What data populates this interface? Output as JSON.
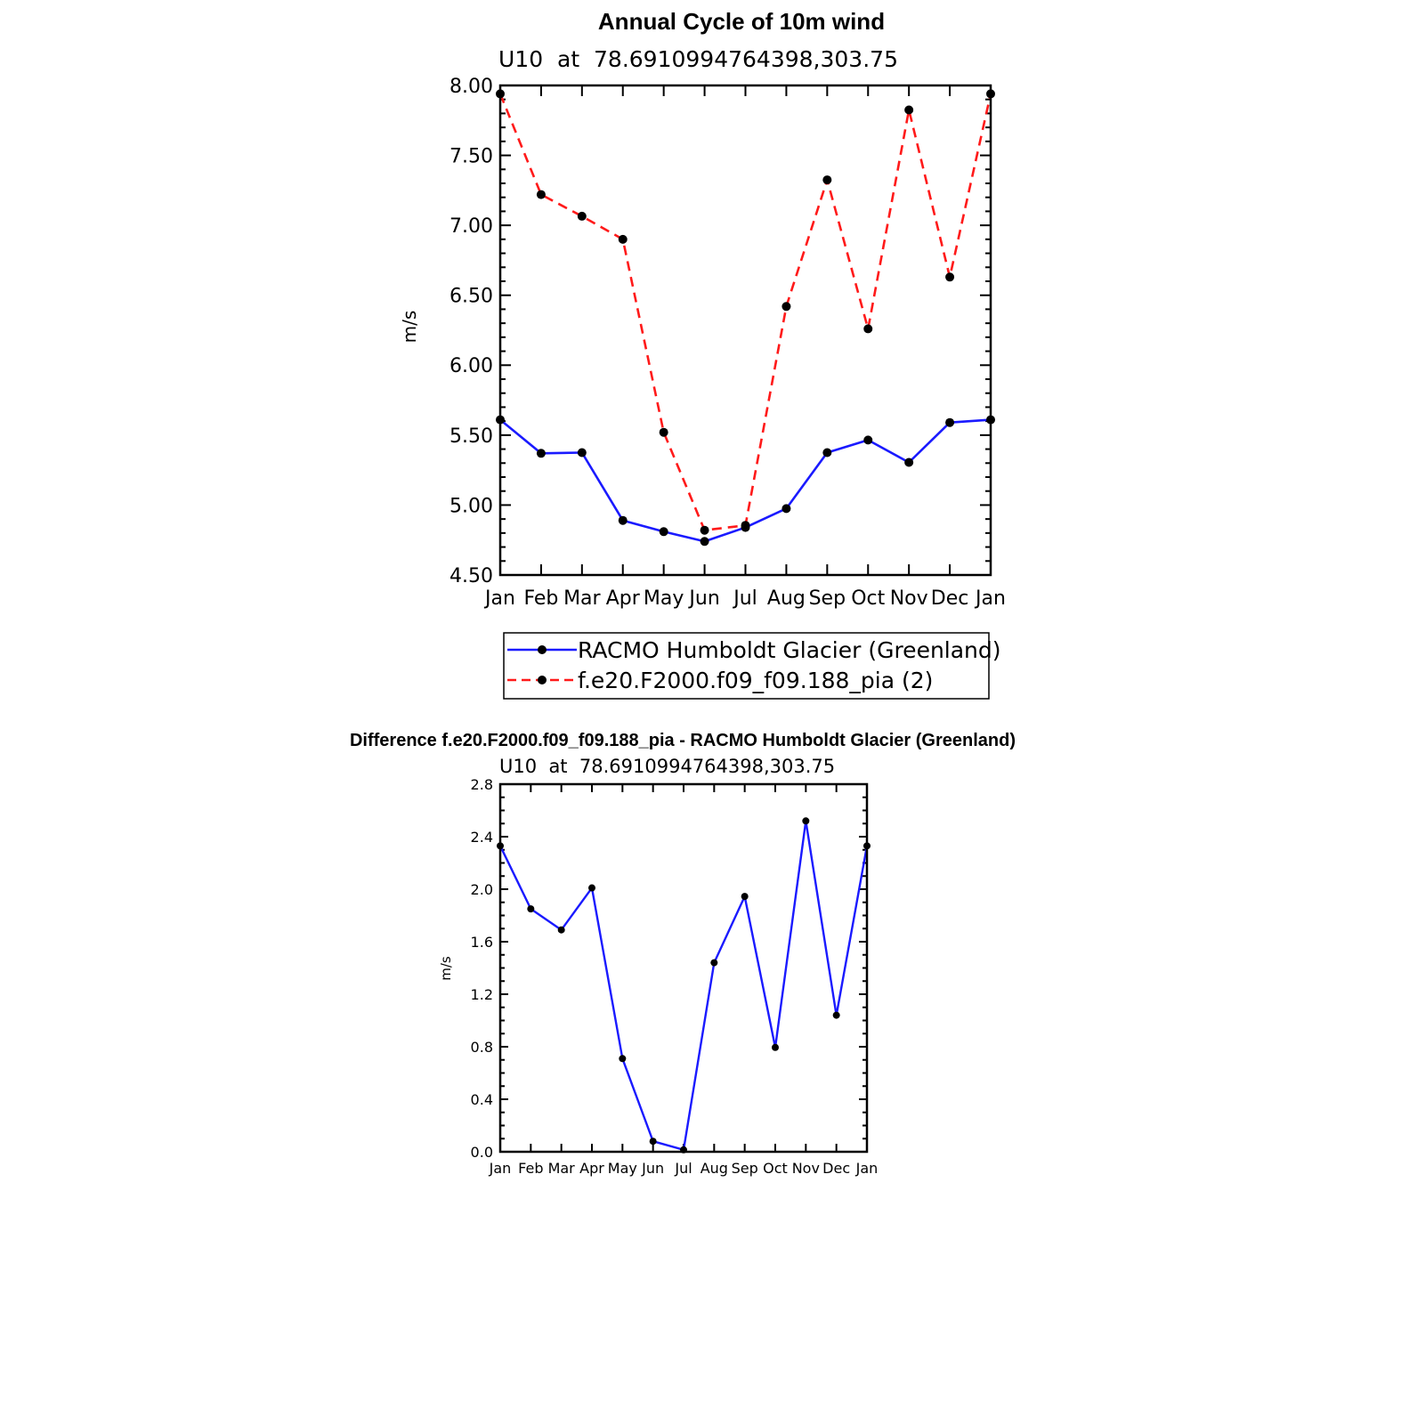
{
  "chart_data": [
    {
      "type": "line",
      "title": "Annual Cycle of 10m wind",
      "subtitle": "U10  at  78.6910994764398,303.75",
      "ylabel": "m/s",
      "xlabel": "",
      "ylim": [
        4.5,
        8.0
      ],
      "yticks": [
        "4.50",
        "5.00",
        "5.50",
        "6.00",
        "6.50",
        "7.00",
        "7.50",
        "8.00"
      ],
      "categories": [
        "Jan",
        "Feb",
        "Mar",
        "Apr",
        "May",
        "Jun",
        "Jul",
        "Aug",
        "Sep",
        "Oct",
        "Nov",
        "Dec",
        "Jan"
      ],
      "legend": "bottom",
      "grid": false,
      "series": [
        {
          "name": "RACMO Humboldt Glacier (Greenland)",
          "color": "#1a1aff",
          "style": "solid",
          "values": [
            5.61,
            5.37,
            5.375,
            4.89,
            4.81,
            4.74,
            4.84,
            4.975,
            5.375,
            5.465,
            5.305,
            5.59,
            5.61
          ]
        },
        {
          "name": "f.e20.F2000.f09_f09.188_pia (2)",
          "color": "#ff1a1a",
          "style": "dashed",
          "values": [
            7.94,
            7.22,
            7.065,
            6.9,
            5.52,
            4.82,
            4.855,
            6.42,
            7.325,
            6.26,
            7.825,
            6.63,
            7.94
          ]
        }
      ]
    },
    {
      "type": "line",
      "title": "Difference f.e20.F2000.f09_f09.188_pia - RACMO Humboldt Glacier (Greenland)",
      "subtitle": "U10  at  78.6910994764398,303.75",
      "ylabel": "m/s",
      "xlabel": "",
      "ylim": [
        0.0,
        2.8
      ],
      "yticks": [
        "0.0",
        "0.4",
        "0.8",
        "1.2",
        "1.6",
        "2.0",
        "2.4",
        "2.8"
      ],
      "categories": [
        "Jan",
        "Feb",
        "Mar",
        "Apr",
        "May",
        "Jun",
        "Jul",
        "Aug",
        "Sep",
        "Oct",
        "Nov",
        "Dec",
        "Jan"
      ],
      "grid": false,
      "series": [
        {
          "color": "#1a1aff",
          "style": "solid",
          "values": [
            2.33,
            1.85,
            1.69,
            2.01,
            0.71,
            0.08,
            0.015,
            1.44,
            1.945,
            0.795,
            2.52,
            1.04,
            2.33
          ]
        }
      ]
    }
  ]
}
